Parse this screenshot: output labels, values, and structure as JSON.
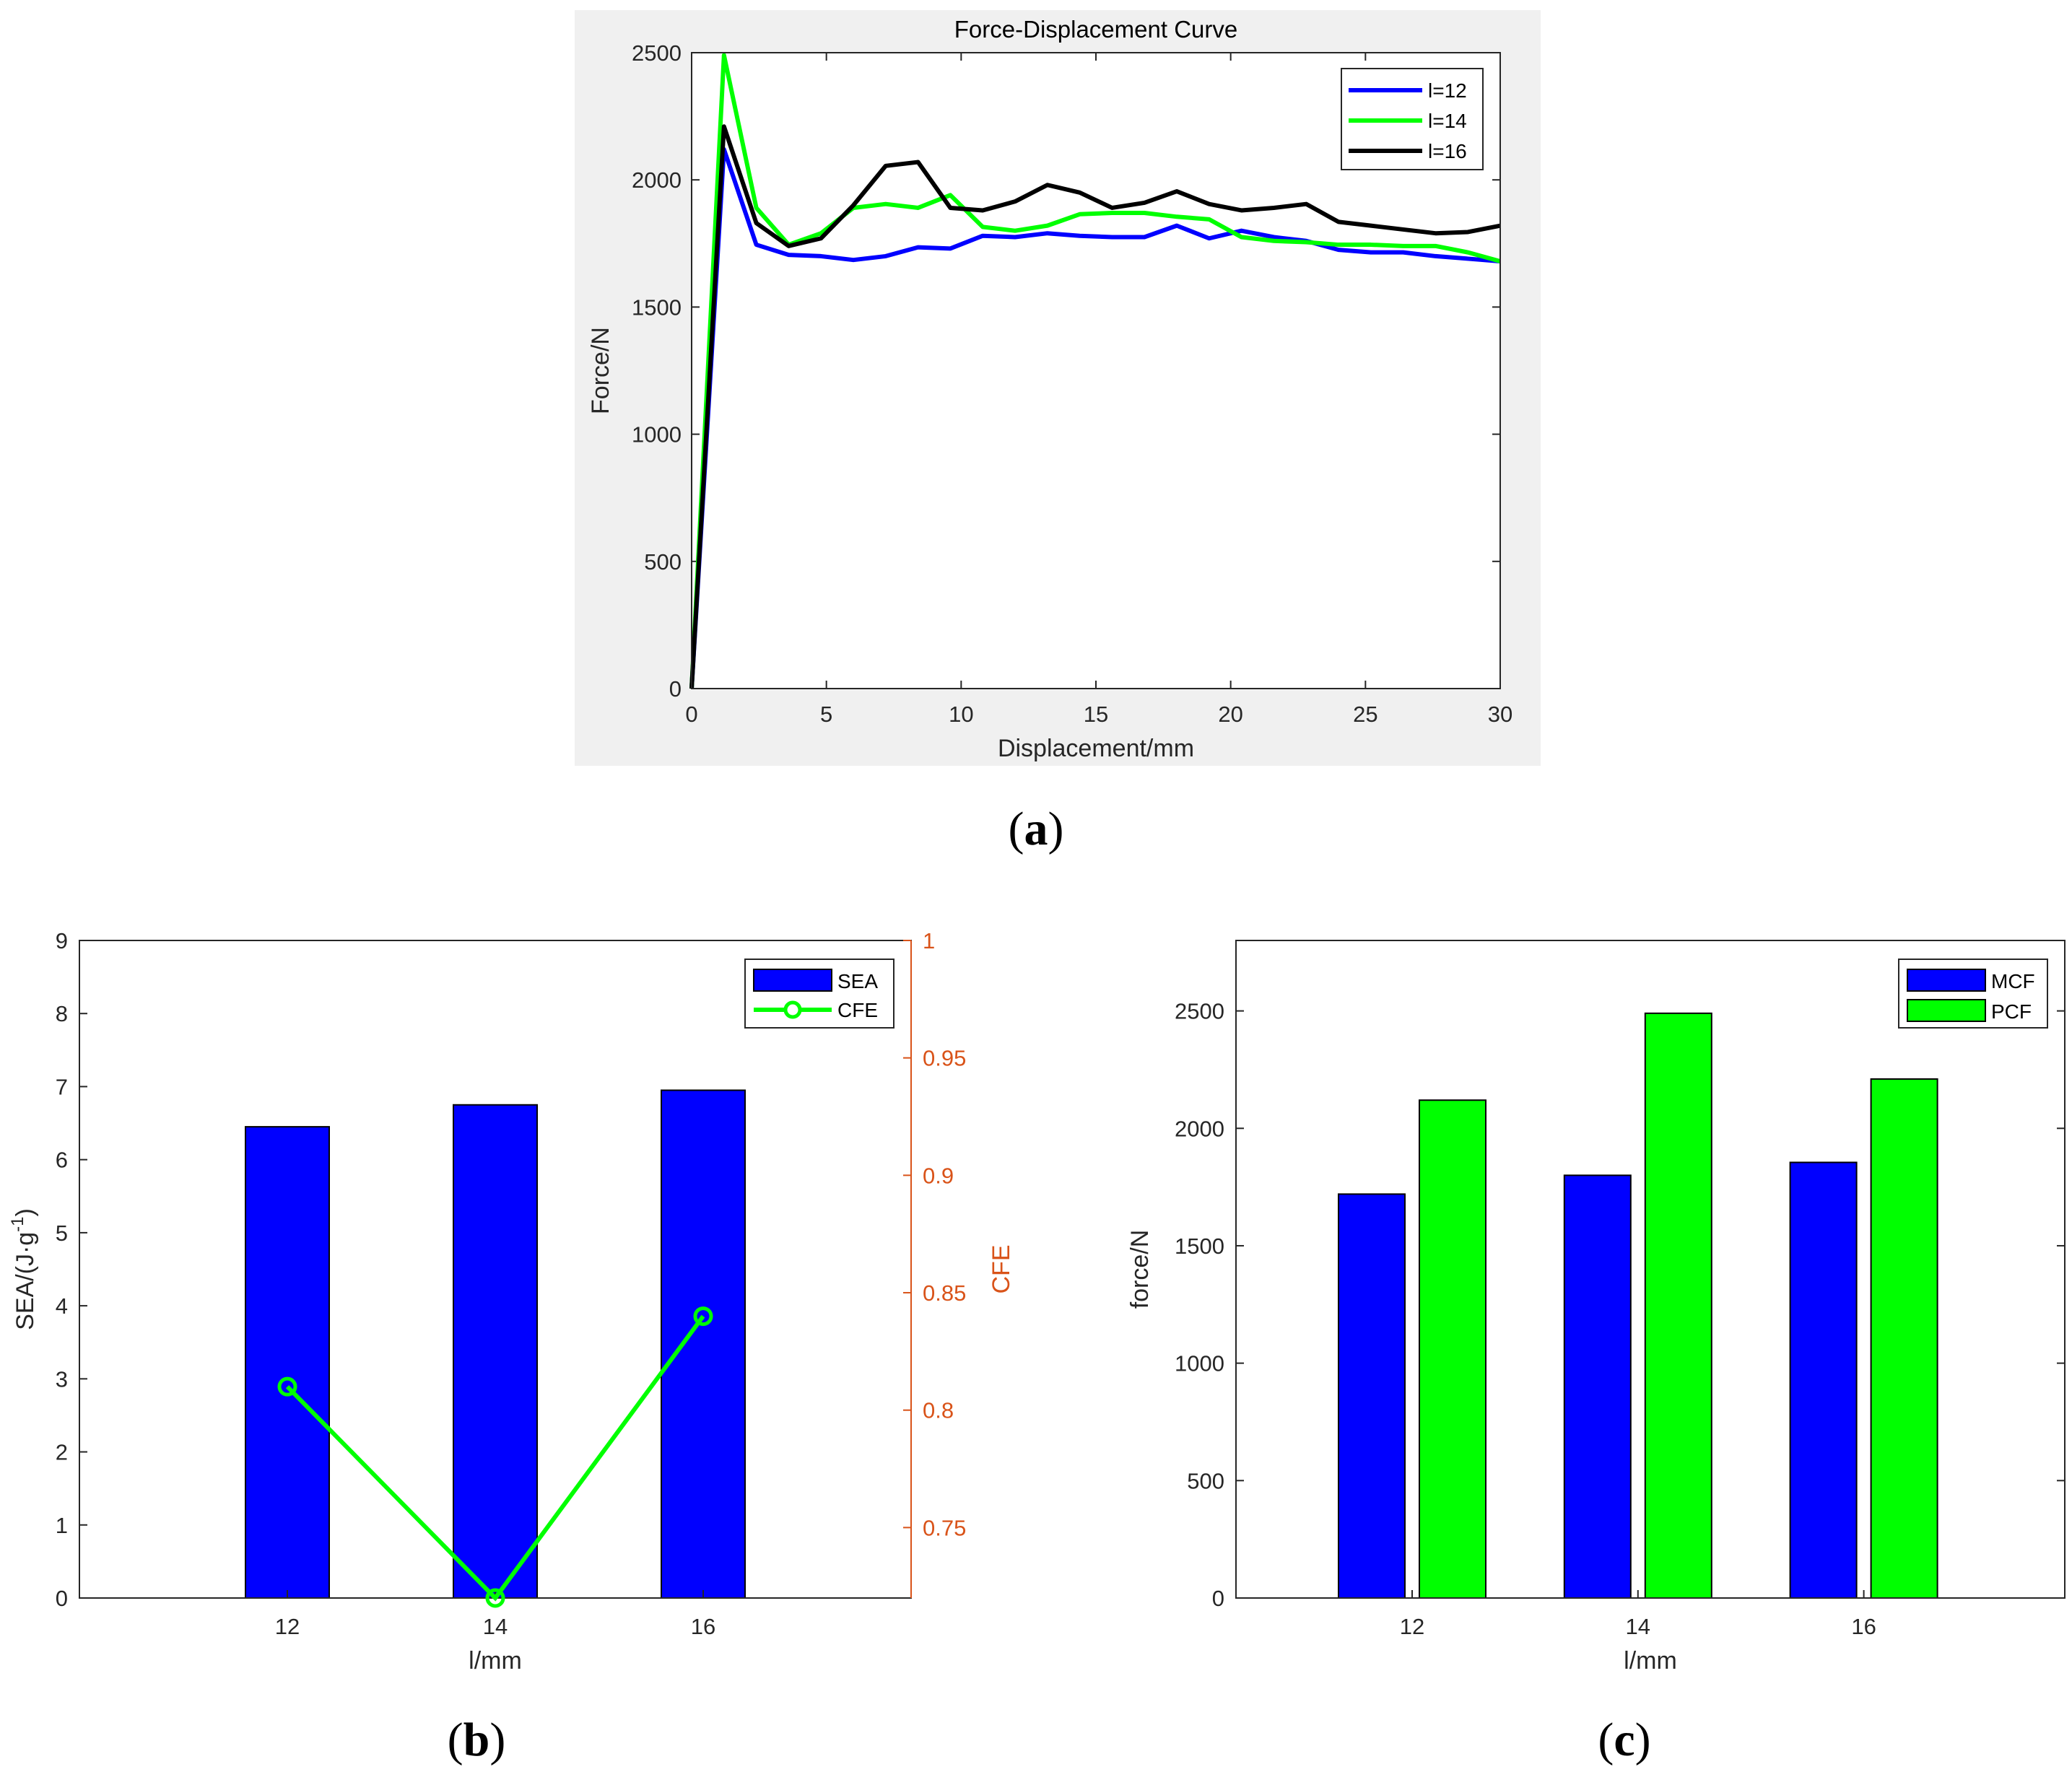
{
  "colors": {
    "blue": "#0000ff",
    "green": "#00ff00",
    "black": "#000000",
    "orange": "#d95319",
    "panel_bg": "#f0f0f0",
    "axis": "#262626"
  },
  "panel_labels": [
    {
      "open": "(",
      "letter": "a",
      "close": ")"
    },
    {
      "open": "(",
      "letter": "b",
      "close": ")"
    },
    {
      "open": "(",
      "letter": "c",
      "close": ")"
    }
  ],
  "chart_data": [
    {
      "type": "line",
      "title": "Force-Displacement Curve",
      "xlabel": "Displacement/mm",
      "ylabel": "Force/N",
      "xlim": [
        0,
        30
      ],
      "ylim": [
        0,
        2500
      ],
      "xticks": [
        "0",
        "5",
        "10",
        "15",
        "20",
        "25",
        "30"
      ],
      "yticks": [
        "0",
        "500",
        "1000",
        "1500",
        "2000",
        "2500"
      ],
      "legend_position": "top-right",
      "x": [
        0,
        1.2,
        2.4,
        3.6,
        4.8,
        6,
        7.2,
        8.4,
        9.6,
        10.8,
        12,
        13.2,
        14.4,
        15.6,
        16.8,
        18,
        19.2,
        20.4,
        21.6,
        22.8,
        24,
        25.2,
        26.4,
        27.6,
        28.8,
        30
      ],
      "series": [
        {
          "name": "l=12",
          "color": "#0000ff",
          "values": [
            0,
            2120,
            1745,
            1705,
            1700,
            1685,
            1700,
            1735,
            1730,
            1780,
            1775,
            1790,
            1780,
            1775,
            1775,
            1820,
            1770,
            1800,
            1775,
            1760,
            1725,
            1715,
            1715,
            1700,
            1690,
            1680
          ]
        },
        {
          "name": "l=14",
          "color": "#00ff00",
          "values": [
            0,
            2490,
            1890,
            1745,
            1790,
            1890,
            1905,
            1890,
            1940,
            1815,
            1800,
            1820,
            1865,
            1870,
            1870,
            1855,
            1845,
            1775,
            1760,
            1755,
            1745,
            1745,
            1740,
            1740,
            1715,
            1680
          ]
        },
        {
          "name": "l=16",
          "color": "#000000",
          "values": [
            0,
            2210,
            1830,
            1740,
            1770,
            1900,
            2055,
            2070,
            1890,
            1880,
            1915,
            1980,
            1950,
            1890,
            1910,
            1955,
            1905,
            1880,
            1890,
            1905,
            1835,
            1820,
            1805,
            1790,
            1795,
            1820
          ]
        }
      ]
    },
    {
      "type": "bar",
      "xlabel": "l/mm",
      "ylabel_left": {
        "main": "SEA/(J·g",
        "sup": "-1",
        "end": ")"
      },
      "ylabel_right": "CFE",
      "categories": [
        "12",
        "14",
        "16"
      ],
      "ylim_left": [
        0,
        9
      ],
      "ylim_right": [
        0.72,
        1
      ],
      "yticks_left": [
        "0",
        "1",
        "2",
        "3",
        "4",
        "5",
        "6",
        "7",
        "8",
        "9"
      ],
      "yticks_right": [
        "0.75",
        "0.8",
        "0.85",
        "0.9",
        "0.95",
        "1"
      ],
      "legend_position": "top-right",
      "series": [
        {
          "name": "SEA",
          "type": "bar",
          "axis": "left",
          "color": "#0000ff",
          "values": [
            6.45,
            6.75,
            6.95
          ]
        },
        {
          "name": "CFE",
          "type": "line",
          "axis": "right",
          "color": "#00ff00",
          "values": [
            0.81,
            0.72,
            0.84
          ]
        }
      ]
    },
    {
      "type": "bar",
      "xlabel": "l/mm",
      "ylabel": "force/N",
      "categories": [
        "12",
        "14",
        "16"
      ],
      "ylim": [
        0,
        2800
      ],
      "yticks": [
        "0",
        "500",
        "1000",
        "1500",
        "2000",
        "2500"
      ],
      "legend_position": "top-right",
      "series": [
        {
          "name": "MCF",
          "color": "#0000ff",
          "values": [
            1720,
            1800,
            1855
          ]
        },
        {
          "name": "PCF",
          "color": "#00ff00",
          "values": [
            2120,
            2490,
            2210
          ]
        }
      ]
    }
  ]
}
